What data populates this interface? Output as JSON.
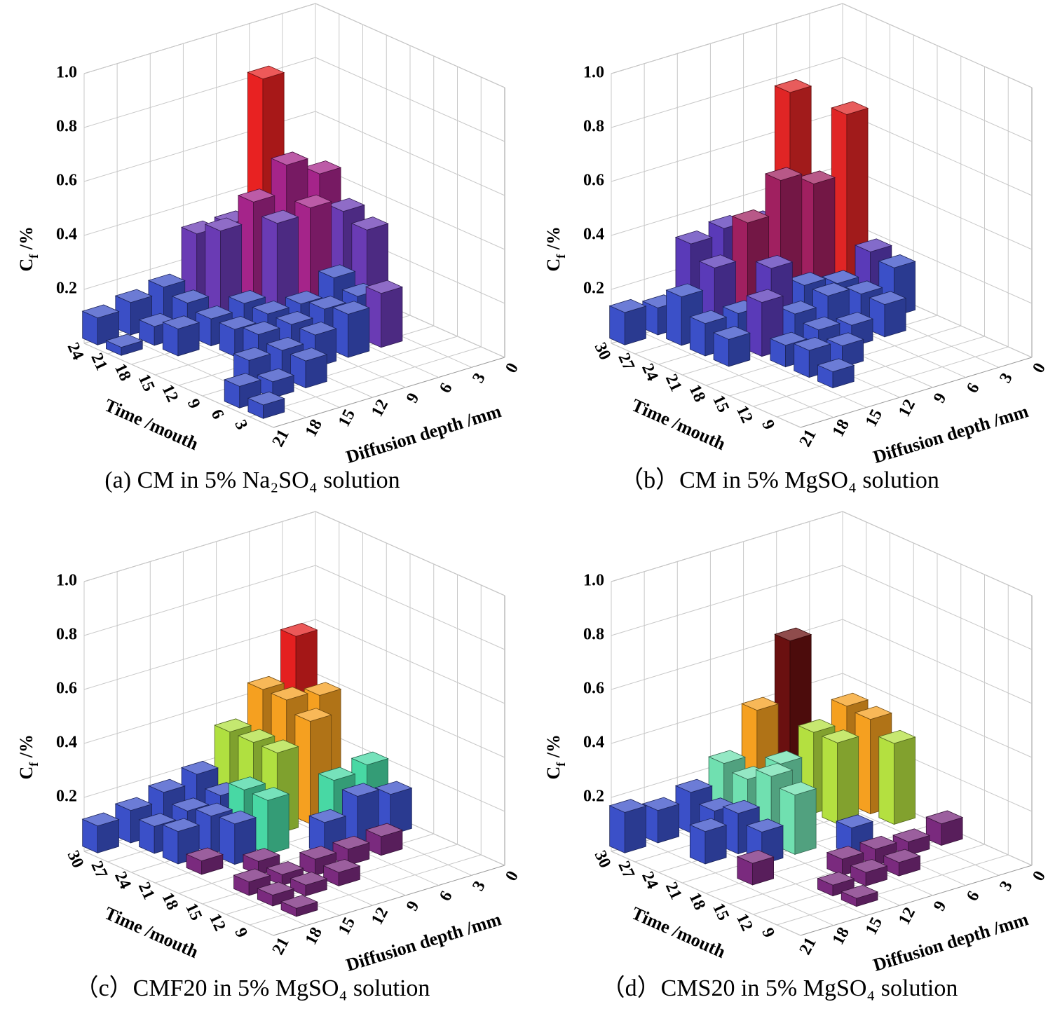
{
  "chart_data": [
    {
      "type": "bar3d",
      "caption": "(a) CM in 5% Na₂SO₄ solution",
      "xlabel": "Time /mouth",
      "ylabel": "Diffusion depth /mm",
      "zlabel": [
        "C",
        "f",
        " /%"
      ],
      "xlim": [
        0,
        24
      ],
      "xticks": [
        3,
        6,
        9,
        12,
        15,
        18,
        21,
        24
      ],
      "ylim": [
        0,
        21
      ],
      "yticks": [
        0,
        3,
        6,
        9,
        12,
        15,
        18,
        21
      ],
      "zlim": [
        0,
        1
      ],
      "zticks": [
        0.2,
        0.4,
        0.6,
        0.8,
        {
          "value": 1,
          "label": "1.0"
        }
      ],
      "colormap": [
        {
          "below": 0.2,
          "color": "#3b4fc6"
        },
        {
          "below": 0.4,
          "color": "#6a3bb4"
        },
        {
          "below": 0.6,
          "color": "#a5248a"
        },
        {
          "below": 1,
          "color": "#e82222"
        }
      ],
      "bars": {
        "x": [
          24,
          24,
          24,
          24,
          24,
          24,
          24,
          21,
          21,
          21,
          21,
          21,
          21,
          21,
          18,
          18,
          18,
          18,
          18,
          18,
          15,
          15,
          15,
          15,
          15,
          12,
          12,
          12,
          12,
          9,
          9,
          9,
          9,
          9,
          6,
          6,
          6,
          3
        ],
        "y": [
          19.5,
          16.5,
          13.5,
          10.5,
          7.5,
          4.5,
          1.5,
          19.5,
          16.5,
          13.5,
          10.5,
          7.5,
          4.5,
          1.5,
          16.5,
          13.5,
          10.5,
          7.5,
          4.5,
          1.5,
          13.5,
          10.5,
          7.5,
          4.5,
          1.5,
          13.5,
          10.5,
          7.5,
          4.5,
          16.5,
          13.5,
          10.5,
          7.5,
          4.5,
          19.5,
          16.5,
          13.5,
          19.5
        ],
        "values": [
          0.1,
          0.12,
          0.14,
          0.3,
          0.3,
          0.8,
          0.35,
          0.03,
          0.07,
          0.12,
          0.35,
          0.42,
          0.52,
          0.45,
          0.1,
          0.1,
          0.12,
          0.38,
          0.4,
          0.35,
          0.1,
          0.12,
          0.12,
          0.18,
          0.32,
          0.12,
          0.12,
          0.14,
          0.15,
          0.1,
          0.1,
          0.12,
          0.16,
          0.2,
          0.08,
          0.06,
          0.1,
          0.05
        ]
      }
    },
    {
      "type": "bar3d",
      "caption": "（b）CM in 5% MgSO₄ solution",
      "xlabel": "Time /mouth",
      "ylabel": "Diffusion depth /mm",
      "zlabel": [
        "C",
        "f",
        " /%"
      ],
      "xlim": [
        6,
        30
      ],
      "xticks": [
        9,
        12,
        15,
        18,
        21,
        24,
        27,
        30
      ],
      "ylim": [
        0,
        21
      ],
      "yticks": [
        0,
        3,
        6,
        9,
        12,
        15,
        18,
        21
      ],
      "zlim": [
        0,
        1
      ],
      "zticks": [
        0.2,
        0.4,
        0.6,
        0.8,
        {
          "value": 1,
          "label": "1.0"
        }
      ],
      "colormap": [
        {
          "below": 0.2,
          "color": "#3b50c8"
        },
        {
          "below": 0.35,
          "color": "#5a3ab8"
        },
        {
          "below": 0.55,
          "color": "#a02060"
        },
        {
          "below": 1,
          "color": "#e02525"
        }
      ],
      "bars": {
        "x": [
          30,
          30,
          30,
          30,
          30,
          30,
          30,
          27,
          27,
          27,
          27,
          27,
          27,
          24,
          24,
          24,
          24,
          24,
          24,
          21,
          21,
          21,
          21,
          21,
          21,
          18,
          18,
          18,
          18,
          15,
          15,
          12
        ],
        "y": [
          19.5,
          16.5,
          13.5,
          10.5,
          7.5,
          4.5,
          1.5,
          16.5,
          13.5,
          10.5,
          7.5,
          4.5,
          1.5,
          16.5,
          13.5,
          10.5,
          7.5,
          4.5,
          1.5,
          16.5,
          13.5,
          10.5,
          7.5,
          4.5,
          1.5,
          13.5,
          10.5,
          7.5,
          4.5,
          13.5,
          10.5,
          13.5
        ],
        "values": [
          0.12,
          0.1,
          0.3,
          0.32,
          0.3,
          0.75,
          0.35,
          0.18,
          0.25,
          0.38,
          0.5,
          0.45,
          0.67,
          0.12,
          0.12,
          0.25,
          0.15,
          0.12,
          0.2,
          0.1,
          0.2,
          0.12,
          0.15,
          0.12,
          0.18,
          0.08,
          0.1,
          0.08,
          0.12,
          0.1,
          0.08,
          0.06
        ]
      }
    },
    {
      "type": "bar3d",
      "caption": "（c）CMF20 in 5% MgSO₄ solution",
      "xlabel": "Time /mouth",
      "ylabel": "Diffusion depth /mm",
      "zlabel": [
        "C",
        "f",
        " /%"
      ],
      "xlim": [
        6,
        30
      ],
      "xticks": [
        9,
        12,
        15,
        18,
        21,
        24,
        27,
        30
      ],
      "ylim": [
        0,
        21
      ],
      "yticks": [
        0,
        3,
        6,
        9,
        12,
        15,
        18,
        21
      ],
      "zlim": [
        0,
        1
      ],
      "zticks": [
        0.2,
        0.4,
        0.6,
        0.8,
        {
          "value": 1,
          "label": "1.0"
        }
      ],
      "colormap": [
        {
          "below": 0.08,
          "color": "#7a2a7e"
        },
        {
          "below": 0.2,
          "color": "#3b50c8"
        },
        {
          "below": 0.26,
          "color": "#48d8a4"
        },
        {
          "below": 0.35,
          "color": "#b0e040"
        },
        {
          "below": 0.5,
          "color": "#f5a020"
        },
        {
          "below": 1,
          "color": "#e42020"
        }
      ],
      "bars": {
        "x": [
          30,
          30,
          30,
          30,
          30,
          30,
          30,
          27,
          27,
          27,
          27,
          27,
          27,
          24,
          24,
          24,
          24,
          24,
          21,
          21,
          21,
          21,
          21,
          18,
          18,
          18,
          18,
          15,
          15,
          15,
          15,
          15,
          12,
          12,
          12,
          9
        ],
        "y": [
          19.5,
          16.5,
          13.5,
          10.5,
          7.5,
          4.5,
          1.5,
          16.5,
          13.5,
          10.5,
          7.5,
          4.5,
          1.5,
          16.5,
          13.5,
          10.5,
          7.5,
          4.5,
          16.5,
          13.5,
          10.5,
          4.5,
          1.5,
          13.5,
          7.5,
          4.5,
          1.5,
          16.5,
          13.5,
          10.5,
          7.5,
          4.5,
          16.5,
          13.5,
          10.5,
          16.5
        ],
        "values": [
          0.1,
          0.12,
          0.15,
          0.18,
          0.3,
          0.42,
          0.58,
          0.1,
          0.12,
          0.14,
          0.3,
          0.42,
          0.4,
          0.12,
          0.14,
          0.2,
          0.3,
          0.38,
          0.05,
          0.15,
          0.2,
          0.2,
          0.22,
          0.05,
          0.12,
          0.18,
          0.15,
          0.05,
          0.04,
          0.06,
          0.06,
          0.07,
          0.04,
          0.04,
          0.05,
          0.03
        ]
      }
    },
    {
      "type": "bar3d",
      "caption": "（d）CMS20 in 5% MgSO₄ solution",
      "xlabel": "Time /mouth",
      "ylabel": "Diffusion depth /mm",
      "zlabel": [
        "C",
        "f",
        " /%"
      ],
      "xlim": [
        6,
        30
      ],
      "xticks": [
        9,
        12,
        15,
        18,
        21,
        24,
        27,
        30
      ],
      "ylim": [
        0,
        21
      ],
      "yticks": [
        0,
        3,
        6,
        9,
        12,
        15,
        18,
        21
      ],
      "zlim": [
        0,
        1
      ],
      "zticks": [
        0.2,
        0.4,
        0.6,
        0.8,
        {
          "value": 1,
          "label": "1.0"
        }
      ],
      "colormap": [
        {
          "below": 0.1,
          "color": "#7a2a7e"
        },
        {
          "below": 0.2,
          "color": "#3b50c8"
        },
        {
          "below": 0.26,
          "color": "#70e0b0"
        },
        {
          "below": 0.34,
          "color": "#b4e040"
        },
        {
          "below": 0.45,
          "color": "#f5a020"
        },
        {
          "below": 0.55,
          "color": "#e82020"
        },
        {
          "below": 1,
          "color": "#6a1010"
        }
      ],
      "bars": {
        "x": [
          30,
          30,
          30,
          30,
          30,
          30,
          30,
          27,
          27,
          27,
          27,
          27,
          24,
          24,
          24,
          24,
          24,
          21,
          21,
          21,
          18,
          18,
          15,
          15,
          15,
          15,
          12,
          12,
          12,
          9
        ],
        "y": [
          19.5,
          16.5,
          13.5,
          10.5,
          7.5,
          4.5,
          1.5,
          13.5,
          10.5,
          7.5,
          4.5,
          1.5,
          16.5,
          13.5,
          10.5,
          4.5,
          1.5,
          13.5,
          10.5,
          1.5,
          16.5,
          7.5,
          10.5,
          7.5,
          4.5,
          1.5,
          13.5,
          10.5,
          7.5,
          13.5
        ],
        "values": [
          0.15,
          0.12,
          0.15,
          0.22,
          0.38,
          0.6,
          0.2,
          0.12,
          0.2,
          0.22,
          0.3,
          0.36,
          0.12,
          0.15,
          0.25,
          0.3,
          0.35,
          0.12,
          0.22,
          0.3,
          0.08,
          0.1,
          0.06,
          0.06,
          0.05,
          0.08,
          0.04,
          0.05,
          0.05,
          0.03
        ]
      }
    }
  ]
}
